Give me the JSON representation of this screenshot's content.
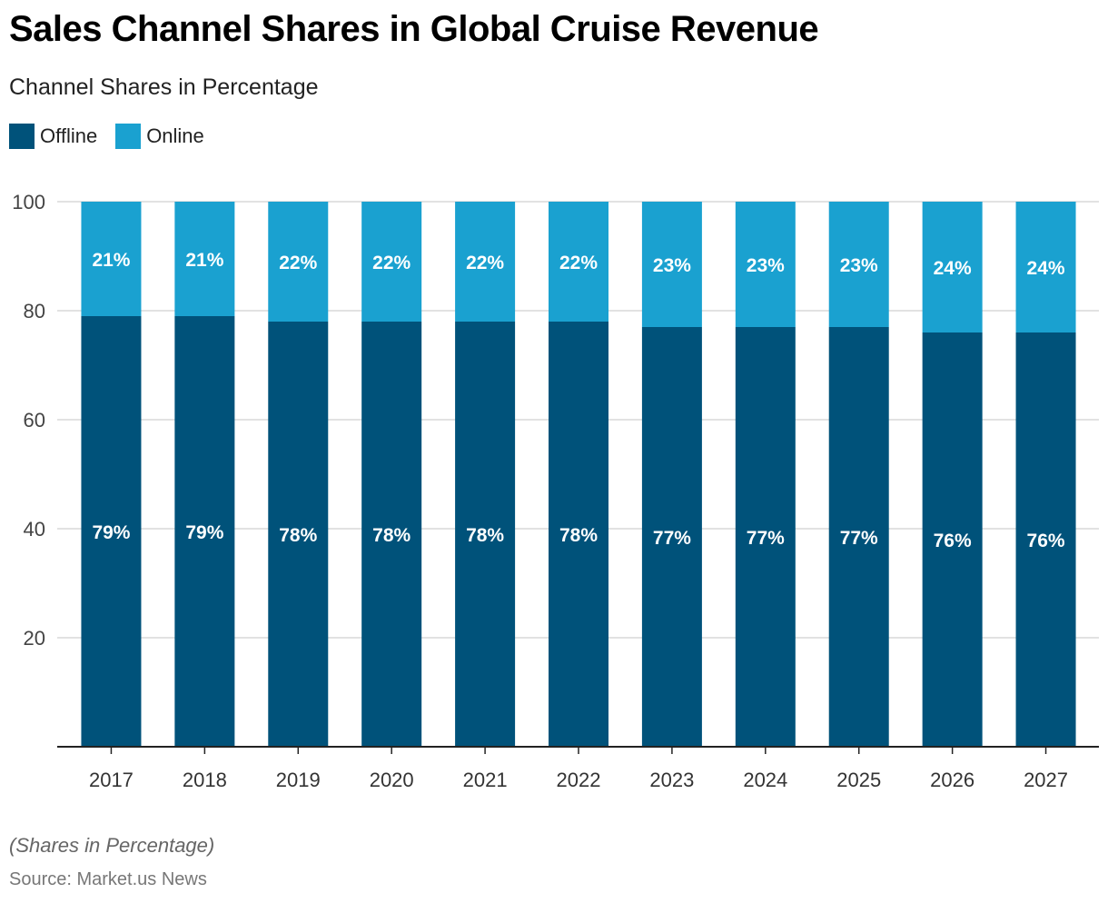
{
  "header": {
    "title": "Sales Channel Shares in Global Cruise Revenue",
    "subtitle": "Channel Shares in Percentage"
  },
  "footer": {
    "note": "(Shares in Percentage)",
    "source": "Source: Market.us News"
  },
  "colors": {
    "offline": "#00527a",
    "online": "#1aa1d0",
    "grid": "#d0d0d0",
    "axis": "#222222",
    "label": "#ffffff"
  },
  "chart_data": {
    "type": "bar",
    "stacked": true,
    "title": "Sales Channel Shares in Global Cruise Revenue",
    "subtitle": "Channel Shares in Percentage",
    "xlabel": "",
    "ylabel": "",
    "ylim": [
      0,
      100
    ],
    "yticks": [
      20,
      40,
      60,
      80,
      100
    ],
    "grid": true,
    "legend_position": "top-left",
    "categories": [
      "2017",
      "2018",
      "2019",
      "2020",
      "2021",
      "2022",
      "2023",
      "2024",
      "2025",
      "2026",
      "2027"
    ],
    "series": [
      {
        "name": "Offline",
        "values": [
          79,
          79,
          78,
          78,
          78,
          78,
          77,
          77,
          77,
          76,
          76
        ],
        "labels": [
          "79%",
          "79%",
          "78%",
          "78%",
          "78%",
          "78%",
          "77%",
          "77%",
          "77%",
          "76%",
          "76%"
        ]
      },
      {
        "name": "Online",
        "values": [
          21,
          21,
          22,
          22,
          22,
          22,
          23,
          23,
          23,
          24,
          24
        ],
        "labels": [
          "21%",
          "21%",
          "22%",
          "22%",
          "22%",
          "22%",
          "23%",
          "23%",
          "23%",
          "24%",
          "24%"
        ]
      }
    ]
  }
}
